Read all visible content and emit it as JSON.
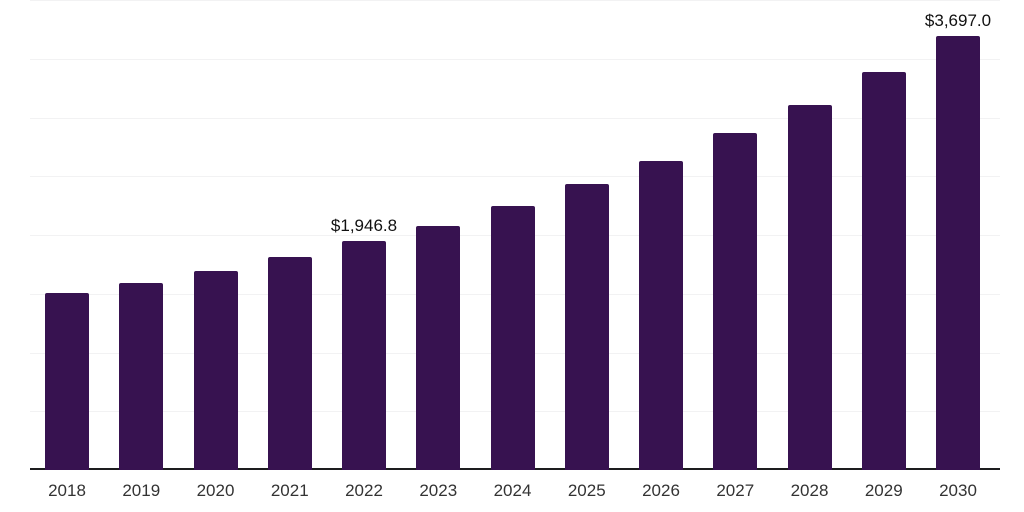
{
  "chart_data": {
    "type": "bar",
    "title": "",
    "xlabel": "",
    "ylabel": "",
    "categories": [
      "2018",
      "2019",
      "2020",
      "2021",
      "2022",
      "2023",
      "2024",
      "2025",
      "2026",
      "2027",
      "2028",
      "2029",
      "2030"
    ],
    "values": [
      1505,
      1592,
      1691,
      1810,
      1946.8,
      2080,
      2243,
      2438,
      2634,
      2864,
      3110,
      3390,
      3697
    ],
    "value_labels": [
      "",
      "",
      "",
      "",
      "$1,946.8",
      "",
      "",
      "",
      "",
      "",
      "",
      "",
      "$3,697.0"
    ],
    "ylim": [
      0,
      4000
    ],
    "grid": true,
    "grid_interval": 500,
    "legend": false,
    "colors": {
      "bar": "#371250",
      "axis_line": "#1d1d1f",
      "gridline": "#f2f2f3",
      "tick_label": "#333333",
      "value_label": "#111111",
      "background": "#ffffff"
    }
  }
}
